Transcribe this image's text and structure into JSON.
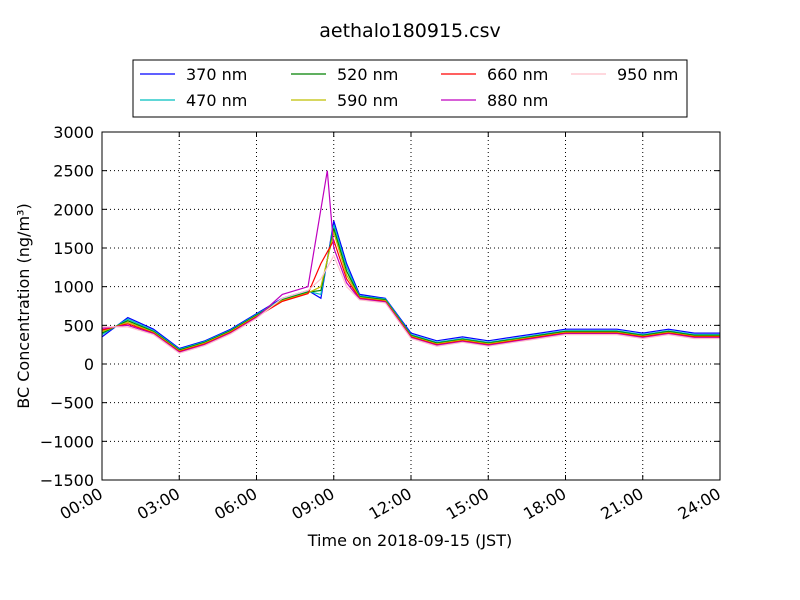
{
  "chart_data": {
    "type": "line",
    "title": "aethalo180915.csv",
    "xlabel": "Time on 2018-09-15 (JST)",
    "ylabel": "BC Concentration (ng/m³)",
    "x_tick_labels": [
      "00:00",
      "03:00",
      "06:00",
      "09:00",
      "12:00",
      "15:00",
      "18:00",
      "21:00",
      "24:00"
    ],
    "y_tick_labels": [
      "−1500",
      "−1000",
      "−500",
      "0",
      "500",
      "1000",
      "1500",
      "2000",
      "2500",
      "3000"
    ],
    "xlim": [
      "00:00",
      "24:00"
    ],
    "ylim": [
      -1500,
      3000
    ],
    "grid": true,
    "legend_position": "top",
    "series": [
      {
        "name": "370 nm",
        "color": "#0000ff",
        "values": [
          {
            "x": "00:00",
            "y": 350
          },
          {
            "x": "01:00",
            "y": 600
          },
          {
            "x": "02:00",
            "y": 450
          },
          {
            "x": "03:00",
            "y": 200
          },
          {
            "x": "04:00",
            "y": 300
          },
          {
            "x": "05:00",
            "y": 450
          },
          {
            "x": "06:00",
            "y": 650
          },
          {
            "x": "07:00",
            "y": 850
          },
          {
            "x": "08:00",
            "y": 950
          },
          {
            "x": "08:30",
            "y": 850
          },
          {
            "x": "09:00",
            "y": 1850
          },
          {
            "x": "09:30",
            "y": 1300
          },
          {
            "x": "10:00",
            "y": 900
          },
          {
            "x": "11:00",
            "y": 850
          },
          {
            "x": "12:00",
            "y": 400
          },
          {
            "x": "13:00",
            "y": 300
          },
          {
            "x": "14:00",
            "y": 350
          },
          {
            "x": "15:00",
            "y": 300
          },
          {
            "x": "16:00",
            "y": 350
          },
          {
            "x": "17:00",
            "y": 400
          },
          {
            "x": "18:00",
            "y": 450
          },
          {
            "x": "19:00",
            "y": 450
          },
          {
            "x": "20:00",
            "y": 450
          },
          {
            "x": "21:00",
            "y": 400
          },
          {
            "x": "22:00",
            "y": 450
          },
          {
            "x": "23:00",
            "y": 400
          },
          {
            "x": "24:00",
            "y": 400
          }
        ]
      },
      {
        "name": "470 nm",
        "color": "#00bfbf",
        "values": [
          {
            "x": "00:00",
            "y": 380
          },
          {
            "x": "01:00",
            "y": 580
          },
          {
            "x": "02:00",
            "y": 430
          },
          {
            "x": "03:00",
            "y": 190
          },
          {
            "x": "04:00",
            "y": 290
          },
          {
            "x": "05:00",
            "y": 440
          },
          {
            "x": "06:00",
            "y": 640
          },
          {
            "x": "07:00",
            "y": 840
          },
          {
            "x": "08:00",
            "y": 940
          },
          {
            "x": "08:30",
            "y": 900
          },
          {
            "x": "09:00",
            "y": 1800
          },
          {
            "x": "09:30",
            "y": 1250
          },
          {
            "x": "10:00",
            "y": 880
          },
          {
            "x": "11:00",
            "y": 840
          },
          {
            "x": "12:00",
            "y": 380
          },
          {
            "x": "13:00",
            "y": 280
          },
          {
            "x": "14:00",
            "y": 330
          },
          {
            "x": "15:00",
            "y": 280
          },
          {
            "x": "16:00",
            "y": 330
          },
          {
            "x": "17:00",
            "y": 380
          },
          {
            "x": "18:00",
            "y": 430
          },
          {
            "x": "19:00",
            "y": 430
          },
          {
            "x": "20:00",
            "y": 430
          },
          {
            "x": "21:00",
            "y": 380
          },
          {
            "x": "22:00",
            "y": 430
          },
          {
            "x": "23:00",
            "y": 380
          },
          {
            "x": "24:00",
            "y": 380
          }
        ]
      },
      {
        "name": "520 nm",
        "color": "#008000",
        "values": [
          {
            "x": "00:00",
            "y": 400
          },
          {
            "x": "01:00",
            "y": 560
          },
          {
            "x": "02:00",
            "y": 420
          },
          {
            "x": "03:00",
            "y": 180
          },
          {
            "x": "04:00",
            "y": 280
          },
          {
            "x": "05:00",
            "y": 430
          },
          {
            "x": "06:00",
            "y": 630
          },
          {
            "x": "07:00",
            "y": 830
          },
          {
            "x": "08:00",
            "y": 930
          },
          {
            "x": "08:30",
            "y": 950
          },
          {
            "x": "09:00",
            "y": 1750
          },
          {
            "x": "09:30",
            "y": 1200
          },
          {
            "x": "10:00",
            "y": 870
          },
          {
            "x": "11:00",
            "y": 830
          },
          {
            "x": "12:00",
            "y": 370
          },
          {
            "x": "13:00",
            "y": 270
          },
          {
            "x": "14:00",
            "y": 320
          },
          {
            "x": "15:00",
            "y": 270
          },
          {
            "x": "16:00",
            "y": 320
          },
          {
            "x": "17:00",
            "y": 370
          },
          {
            "x": "18:00",
            "y": 420
          },
          {
            "x": "19:00",
            "y": 420
          },
          {
            "x": "20:00",
            "y": 420
          },
          {
            "x": "21:00",
            "y": 370
          },
          {
            "x": "22:00",
            "y": 420
          },
          {
            "x": "23:00",
            "y": 370
          },
          {
            "x": "24:00",
            "y": 370
          }
        ]
      },
      {
        "name": "590 nm",
        "color": "#bfbf00",
        "values": [
          {
            "x": "00:00",
            "y": 420
          },
          {
            "x": "01:00",
            "y": 540
          },
          {
            "x": "02:00",
            "y": 410
          },
          {
            "x": "03:00",
            "y": 170
          },
          {
            "x": "04:00",
            "y": 270
          },
          {
            "x": "05:00",
            "y": 420
          },
          {
            "x": "06:00",
            "y": 620
          },
          {
            "x": "07:00",
            "y": 820
          },
          {
            "x": "08:00",
            "y": 920
          },
          {
            "x": "08:30",
            "y": 1000
          },
          {
            "x": "09:00",
            "y": 1700
          },
          {
            "x": "09:30",
            "y": 1150
          },
          {
            "x": "10:00",
            "y": 860
          },
          {
            "x": "11:00",
            "y": 820
          },
          {
            "x": "12:00",
            "y": 360
          },
          {
            "x": "13:00",
            "y": 260
          },
          {
            "x": "14:00",
            "y": 310
          },
          {
            "x": "15:00",
            "y": 260
          },
          {
            "x": "16:00",
            "y": 310
          },
          {
            "x": "17:00",
            "y": 360
          },
          {
            "x": "18:00",
            "y": 410
          },
          {
            "x": "19:00",
            "y": 410
          },
          {
            "x": "20:00",
            "y": 410
          },
          {
            "x": "21:00",
            "y": 360
          },
          {
            "x": "22:00",
            "y": 410
          },
          {
            "x": "23:00",
            "y": 360
          },
          {
            "x": "24:00",
            "y": 360
          }
        ]
      },
      {
        "name": "660 nm",
        "color": "#ff0000",
        "values": [
          {
            "x": "00:00",
            "y": 440
          },
          {
            "x": "01:00",
            "y": 520
          },
          {
            "x": "02:00",
            "y": 400
          },
          {
            "x": "03:00",
            "y": 160
          },
          {
            "x": "04:00",
            "y": 260
          },
          {
            "x": "05:00",
            "y": 410
          },
          {
            "x": "06:00",
            "y": 610
          },
          {
            "x": "07:00",
            "y": 810
          },
          {
            "x": "08:00",
            "y": 910
          },
          {
            "x": "08:30",
            "y": 1300
          },
          {
            "x": "09:00",
            "y": 1600
          },
          {
            "x": "09:30",
            "y": 1100
          },
          {
            "x": "10:00",
            "y": 850
          },
          {
            "x": "11:00",
            "y": 810
          },
          {
            "x": "12:00",
            "y": 350
          },
          {
            "x": "13:00",
            "y": 250
          },
          {
            "x": "14:00",
            "y": 300
          },
          {
            "x": "15:00",
            "y": 250
          },
          {
            "x": "16:00",
            "y": 300
          },
          {
            "x": "17:00",
            "y": 350
          },
          {
            "x": "18:00",
            "y": 400
          },
          {
            "x": "19:00",
            "y": 400
          },
          {
            "x": "20:00",
            "y": 400
          },
          {
            "x": "21:00",
            "y": 350
          },
          {
            "x": "22:00",
            "y": 400
          },
          {
            "x": "23:00",
            "y": 350
          },
          {
            "x": "24:00",
            "y": 350
          }
        ]
      },
      {
        "name": "880 nm",
        "color": "#bf00bf",
        "values": [
          {
            "x": "00:00",
            "y": 460
          },
          {
            "x": "01:00",
            "y": 500
          },
          {
            "x": "02:00",
            "y": 390
          },
          {
            "x": "03:00",
            "y": 150
          },
          {
            "x": "04:00",
            "y": 250
          },
          {
            "x": "05:00",
            "y": 400
          },
          {
            "x": "06:00",
            "y": 600
          },
          {
            "x": "07:00",
            "y": 900
          },
          {
            "x": "08:00",
            "y": 1000
          },
          {
            "x": "08:45",
            "y": 2500
          },
          {
            "x": "09:00",
            "y": 1500
          },
          {
            "x": "09:30",
            "y": 1050
          },
          {
            "x": "10:00",
            "y": 840
          },
          {
            "x": "11:00",
            "y": 800
          },
          {
            "x": "12:00",
            "y": 340
          },
          {
            "x": "13:00",
            "y": 240
          },
          {
            "x": "14:00",
            "y": 290
          },
          {
            "x": "15:00",
            "y": 240
          },
          {
            "x": "16:00",
            "y": 290
          },
          {
            "x": "17:00",
            "y": 340
          },
          {
            "x": "18:00",
            "y": 390
          },
          {
            "x": "19:00",
            "y": 390
          },
          {
            "x": "20:00",
            "y": 390
          },
          {
            "x": "21:00",
            "y": 340
          },
          {
            "x": "22:00",
            "y": 390
          },
          {
            "x": "23:00",
            "y": 340
          },
          {
            "x": "24:00",
            "y": 340
          }
        ]
      },
      {
        "name": "950 nm",
        "color": "#ffc0cb",
        "values": [
          {
            "x": "00:00",
            "y": 480
          },
          {
            "x": "01:00",
            "y": 480
          },
          {
            "x": "02:00",
            "y": 380
          },
          {
            "x": "03:00",
            "y": 140
          },
          {
            "x": "04:00",
            "y": 240
          },
          {
            "x": "05:00",
            "y": 390
          },
          {
            "x": "06:00",
            "y": 590
          },
          {
            "x": "07:00",
            "y": 850
          },
          {
            "x": "08:00",
            "y": 950
          },
          {
            "x": "08:30",
            "y": 1100
          },
          {
            "x": "09:00",
            "y": 1400
          },
          {
            "x": "09:30",
            "y": 1000
          },
          {
            "x": "10:00",
            "y": 830
          },
          {
            "x": "11:00",
            "y": 790
          },
          {
            "x": "12:00",
            "y": 330
          },
          {
            "x": "13:00",
            "y": 230
          },
          {
            "x": "14:00",
            "y": 280
          },
          {
            "x": "15:00",
            "y": 230
          },
          {
            "x": "16:00",
            "y": 280
          },
          {
            "x": "17:00",
            "y": 330
          },
          {
            "x": "18:00",
            "y": 380
          },
          {
            "x": "19:00",
            "y": 380
          },
          {
            "x": "20:00",
            "y": 380
          },
          {
            "x": "21:00",
            "y": 330
          },
          {
            "x": "22:00",
            "y": 380
          },
          {
            "x": "23:00",
            "y": 330
          },
          {
            "x": "24:00",
            "y": 330
          }
        ]
      }
    ]
  }
}
